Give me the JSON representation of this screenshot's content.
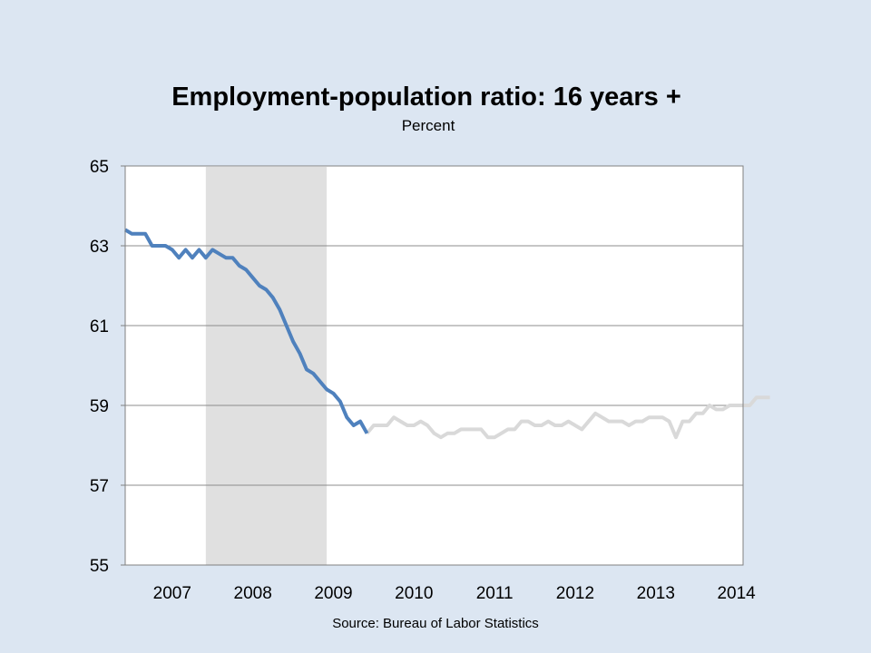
{
  "chart_data": {
    "type": "line",
    "title": "Employment-population ratio: 16 years +",
    "subtitle": "Percent",
    "source": "Source: Bureau of Labor Statistics",
    "ylim": [
      55,
      65
    ],
    "yticks": [
      55,
      57,
      59,
      61,
      63,
      65
    ],
    "xticks": [
      "2007",
      "2008",
      "2009",
      "2010",
      "2011",
      "2012",
      "2013",
      "2014"
    ],
    "x_start": "2006-12",
    "x_end": "2014-08",
    "grid": true,
    "recession": {
      "start": "2007-12",
      "end": "2009-06",
      "color": "#e0e0e0"
    },
    "series": [
      {
        "color": "#4f81bd",
        "start": "2006-12",
        "values": [
          63.4,
          63.3,
          63.3,
          63.3,
          63.0,
          63.0,
          63.0,
          62.9,
          62.7,
          62.9,
          62.7,
          62.9,
          62.7,
          62.9,
          62.8,
          62.7,
          62.7,
          62.5,
          62.4,
          62.2,
          62.0,
          61.9,
          61.7,
          61.4,
          61.0,
          60.6,
          60.3,
          59.9,
          59.8,
          59.6,
          59.4,
          59.3,
          59.1,
          58.7,
          58.5,
          58.6,
          58.3
        ]
      },
      {
        "color": "#d9d9d9",
        "start": "2009-12",
        "values": [
          58.3,
          58.5,
          58.5,
          58.5,
          58.7,
          58.6,
          58.5,
          58.5,
          58.6,
          58.5,
          58.3,
          58.2,
          58.3,
          58.3,
          58.4,
          58.4,
          58.4,
          58.4,
          58.2,
          58.2,
          58.3,
          58.4,
          58.4,
          58.6,
          58.6,
          58.5,
          58.5,
          58.6,
          58.5,
          58.5,
          58.6,
          58.5,
          58.4,
          58.6,
          58.8,
          58.7,
          58.6,
          58.6,
          58.6,
          58.5,
          58.6,
          58.6,
          58.7,
          58.7,
          58.7,
          58.6,
          58.2,
          58.6,
          58.6,
          58.8,
          58.8,
          59.0,
          58.9,
          58.9,
          59.0,
          59.0,
          59.0,
          59.0,
          59.2,
          59.2,
          59.2
        ]
      }
    ]
  }
}
